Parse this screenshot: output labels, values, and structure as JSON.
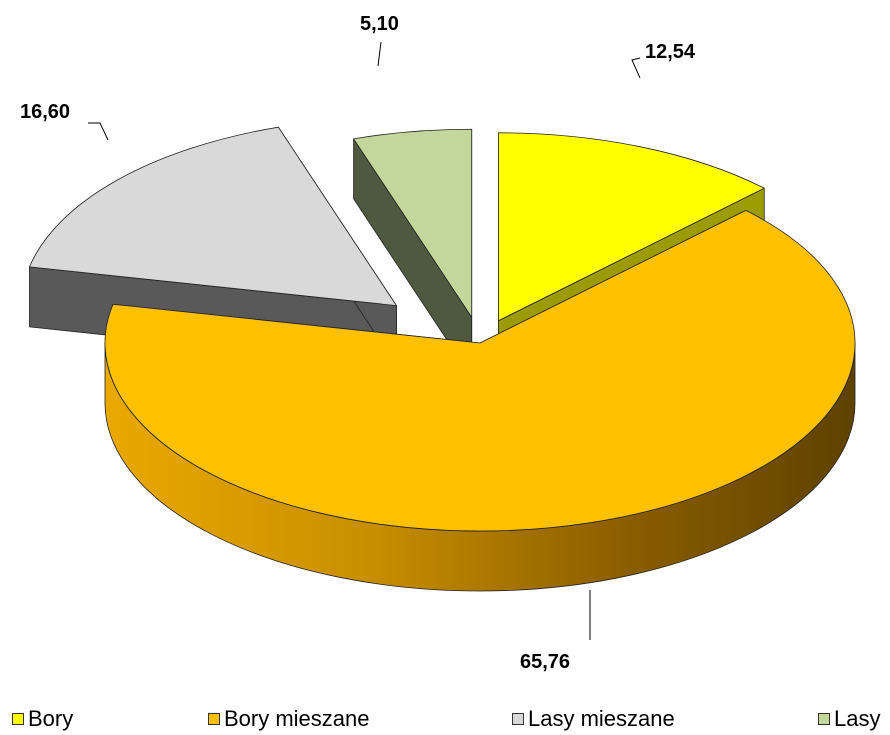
{
  "chart_data": {
    "type": "pie",
    "title": "",
    "categories": [
      "Bory",
      "Bory mieszane",
      "Lasy mieszane",
      "Lasy"
    ],
    "values": [
      12.54,
      65.76,
      16.6,
      5.1
    ],
    "labels": [
      "12,54",
      "65,76",
      "16,60",
      "5,10"
    ],
    "colors": {
      "Bory": "#ffff00",
      "Bory mieszane": "#ffc000",
      "Lasy mieszane": "#d9d9d9",
      "Lasy": "#c3d69b"
    },
    "side_colors": {
      "Bory": "#9c9c00",
      "Bory mieszane": "#a06e00",
      "Lasy mieszane": "#595959",
      "Lasy": "#4f5940"
    },
    "exploded": true,
    "legend_position": "bottom"
  }
}
